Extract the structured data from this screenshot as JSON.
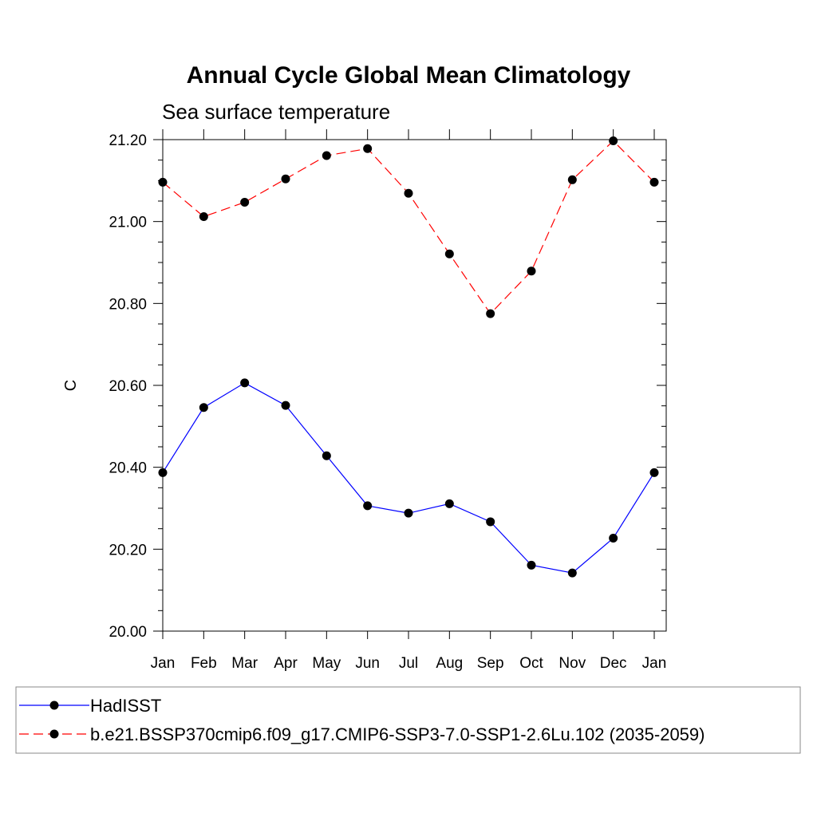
{
  "chart_data": {
    "type": "line",
    "title": "Annual Cycle Global Mean Climatology",
    "subtitle": "Sea surface temperature",
    "ylabel": "C",
    "xlabel": "",
    "ylim": [
      20.0,
      21.2
    ],
    "yticks": [
      "20.00",
      "20.20",
      "20.40",
      "20.60",
      "20.80",
      "21.00",
      "21.20"
    ],
    "categories": [
      "Jan",
      "Feb",
      "Mar",
      "Apr",
      "May",
      "Jun",
      "Jul",
      "Aug",
      "Sep",
      "Oct",
      "Nov",
      "Dec",
      "Jan"
    ],
    "series": [
      {
        "name": "HadISST",
        "color": "#0000ff",
        "style": "solid",
        "values": [
          20.387,
          20.546,
          20.606,
          20.551,
          20.428,
          20.306,
          20.288,
          20.311,
          20.267,
          20.161,
          20.142,
          20.227,
          20.387
        ]
      },
      {
        "name": "b.e21.BSSP370cmip6.f09_g17.CMIP6-SSP3-7.0-SSP1-2.6Lu.102 (2035-2059)",
        "color": "#ff0000",
        "style": "dashed",
        "values": [
          21.096,
          21.012,
          21.047,
          21.104,
          21.161,
          21.178,
          21.069,
          20.921,
          20.775,
          20.879,
          21.102,
          21.197,
          21.096
        ]
      }
    ],
    "legend_position": "bottom"
  }
}
